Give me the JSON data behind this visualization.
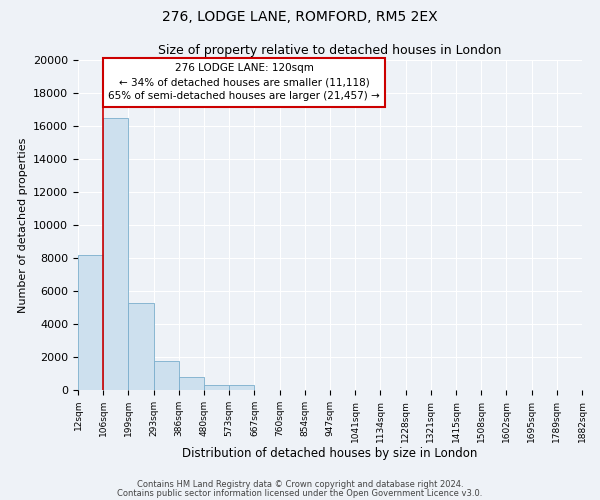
{
  "title": "276, LODGE LANE, ROMFORD, RM5 2EX",
  "subtitle": "Size of property relative to detached houses in London",
  "xlabel": "Distribution of detached houses by size in London",
  "ylabel": "Number of detached properties",
  "bar_color": "#cde0ee",
  "bar_edge_color": "#7aaecc",
  "background_color": "#eef2f7",
  "grid_color": "#ffffff",
  "bin_labels": [
    "12sqm",
    "106sqm",
    "199sqm",
    "293sqm",
    "386sqm",
    "480sqm",
    "573sqm",
    "667sqm",
    "760sqm",
    "854sqm",
    "947sqm",
    "1041sqm",
    "1134sqm",
    "1228sqm",
    "1321sqm",
    "1415sqm",
    "1508sqm",
    "1602sqm",
    "1695sqm",
    "1789sqm",
    "1882sqm"
  ],
  "bar_heights": [
    8200,
    16500,
    5300,
    1750,
    800,
    300,
    300,
    0,
    0,
    0,
    0,
    0,
    0,
    0,
    0,
    0,
    0,
    0,
    0,
    0
  ],
  "ylim": [
    0,
    20000
  ],
  "yticks": [
    0,
    2000,
    4000,
    6000,
    8000,
    10000,
    12000,
    14000,
    16000,
    18000,
    20000
  ],
  "property_line_x": 1,
  "annotation_title": "276 LODGE LANE: 120sqm",
  "annotation_line1": "← 34% of detached houses are smaller (11,118)",
  "annotation_line2": "65% of semi-detached houses are larger (21,457) →",
  "annotation_box_color": "#ffffff",
  "annotation_box_edge": "#cc0000",
  "vline_color": "#cc0000",
  "footer1": "Contains HM Land Registry data © Crown copyright and database right 2024.",
  "footer2": "Contains public sector information licensed under the Open Government Licence v3.0."
}
